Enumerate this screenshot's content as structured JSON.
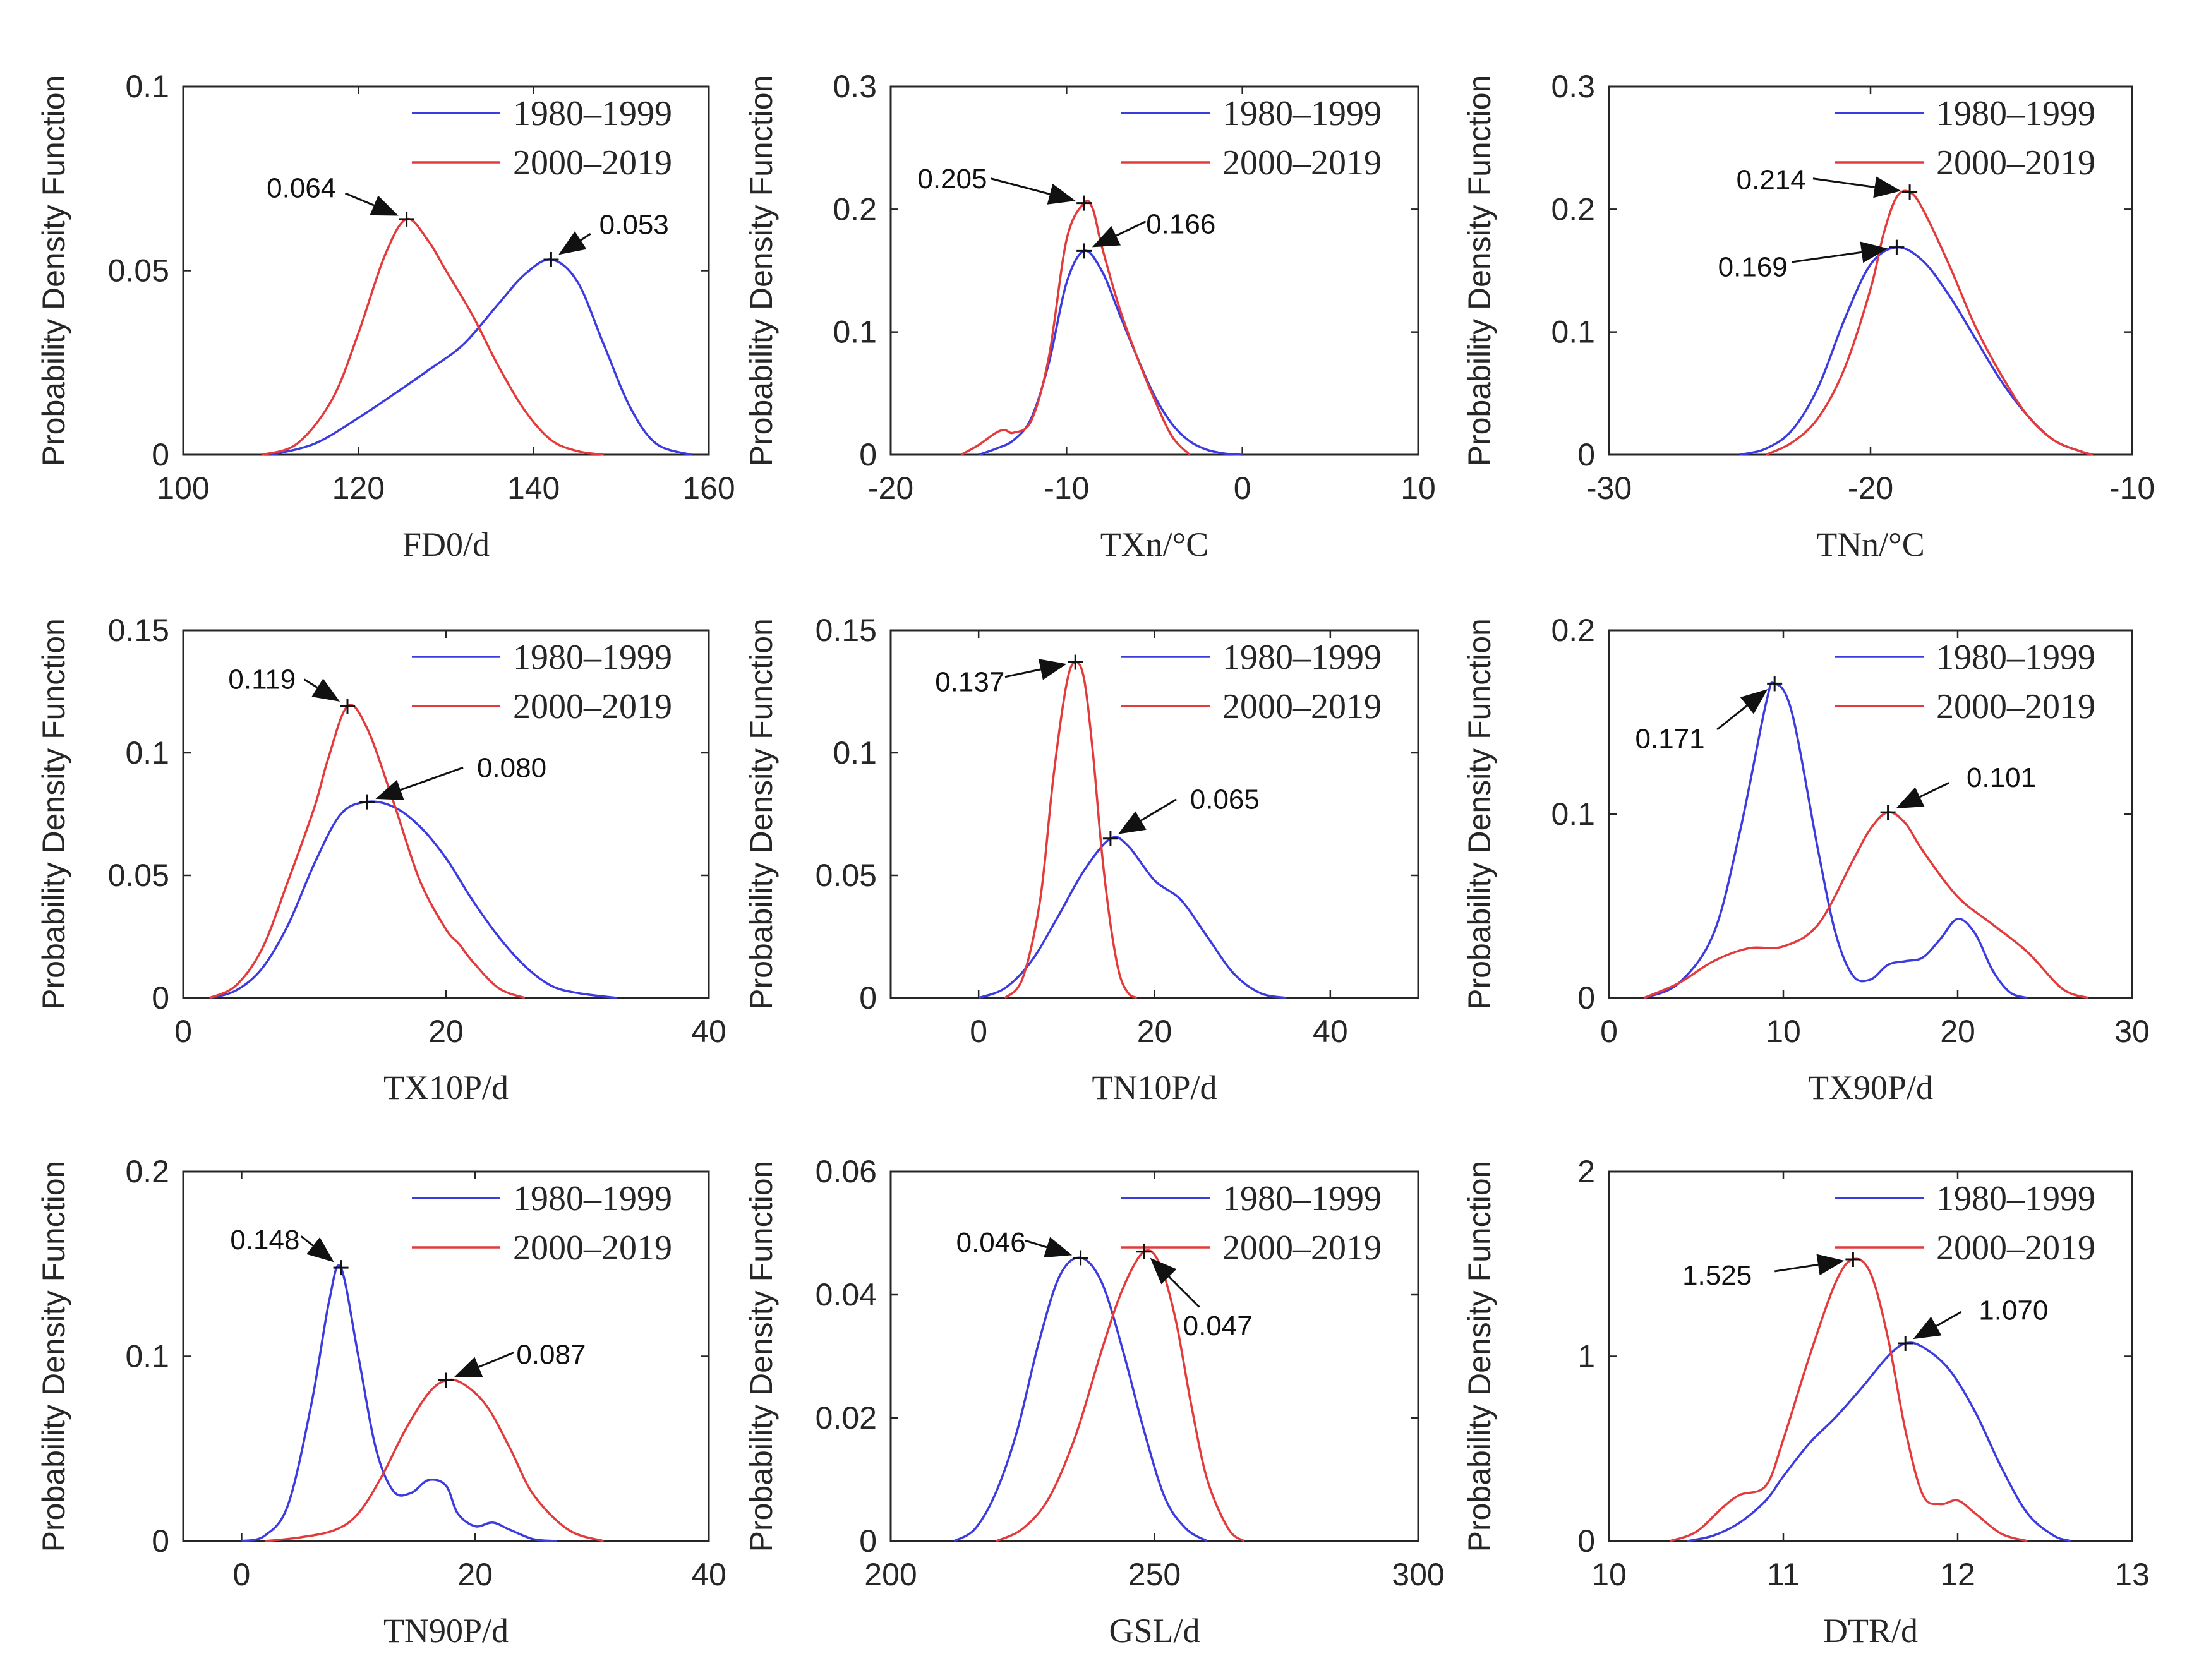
{
  "colors": {
    "series_1980": "#3b3bdf",
    "series_2000": "#e33b3b",
    "axis": "#262626"
  },
  "legend_labels": [
    "1980–1999",
    "2000–2019"
  ],
  "ylabel": "Probability Density Function",
  "chart_data": [
    {
      "type": "line",
      "xlabel": "FD0/d",
      "xlim": [
        100,
        160
      ],
      "ylim": [
        0,
        0.1
      ],
      "xticks": [
        "100",
        "120",
        "140",
        "160"
      ],
      "yticks": [
        "0",
        "0.05",
        "0.1"
      ],
      "series": [
        {
          "name": "1980–1999",
          "x": [
            110,
            115,
            120,
            125,
            128,
            132,
            136,
            139,
            142,
            145,
            148,
            151,
            154,
            158
          ],
          "y": [
            0,
            0.003,
            0.01,
            0.018,
            0.023,
            0.03,
            0.041,
            0.049,
            0.053,
            0.047,
            0.03,
            0.013,
            0.003,
            0
          ]
        },
        {
          "name": "2000–2019",
          "x": [
            109,
            113,
            117,
            120,
            123,
            125.5,
            128,
            130,
            133,
            136,
            139,
            142,
            145,
            148
          ],
          "y": [
            0,
            0.003,
            0.015,
            0.033,
            0.054,
            0.064,
            0.058,
            0.05,
            0.038,
            0.024,
            0.012,
            0.004,
            0.001,
            0
          ]
        }
      ],
      "peaks": [
        {
          "label": "0.064",
          "x": 125.5,
          "y": 0.064,
          "tx": 113.5,
          "ty": 0.0725,
          "anchor": "middle",
          "sx": 118.5,
          "sy": 0.071
        },
        {
          "label": "0.053",
          "x": 142,
          "y": 0.053,
          "tx": 147.5,
          "ty": 0.0625,
          "anchor": "start",
          "sx": 146.5,
          "sy": 0.06
        }
      ]
    },
    {
      "type": "line",
      "xlabel": "TXn/°C",
      "xlim": [
        -20,
        10
      ],
      "ylim": [
        0,
        0.3
      ],
      "xticks": [
        "-20",
        "-10",
        "0",
        "10"
      ],
      "yticks": [
        "0",
        "0.1",
        "0.2",
        "0.3"
      ],
      "series": [
        {
          "name": "1980–1999",
          "x": [
            -15,
            -14,
            -13,
            -12,
            -11,
            -10,
            -9,
            -8,
            -7,
            -6,
            -5,
            -4,
            -3,
            -2,
            -1,
            0
          ],
          "y": [
            0,
            0.005,
            0.012,
            0.03,
            0.075,
            0.14,
            0.166,
            0.15,
            0.115,
            0.08,
            0.048,
            0.025,
            0.011,
            0.004,
            0.001,
            0
          ]
        },
        {
          "name": "2000–2019",
          "x": [
            -16,
            -15,
            -14,
            -13.5,
            -13,
            -12,
            -11,
            -10,
            -9,
            -8.5,
            -8,
            -7,
            -6,
            -5,
            -4,
            -3
          ],
          "y": [
            0,
            0.008,
            0.018,
            0.02,
            0.018,
            0.028,
            0.08,
            0.175,
            0.205,
            0.2,
            0.17,
            0.12,
            0.08,
            0.045,
            0.015,
            0
          ]
        }
      ],
      "peaks": [
        {
          "label": "0.205",
          "x": -9,
          "y": 0.205,
          "tx": -16.5,
          "ty": 0.225,
          "anchor": "middle",
          "sx": -14.3,
          "sy": 0.225
        },
        {
          "label": "0.166",
          "x": -9,
          "y": 0.166,
          "tx": -3.5,
          "ty": 0.188,
          "anchor": "middle",
          "sx": -5.5,
          "sy": 0.19
        }
      ]
    },
    {
      "type": "line",
      "xlabel": "TNn/°C",
      "xlim": [
        -30,
        -10
      ],
      "ylim": [
        0,
        0.3
      ],
      "xticks": [
        "-30",
        "-20",
        "-10"
      ],
      "yticks": [
        "0",
        "0.1",
        "0.2",
        "0.3"
      ],
      "series": [
        {
          "name": "1980–1999",
          "x": [
            -25,
            -24,
            -23,
            -22,
            -21,
            -20,
            -19,
            -18,
            -17,
            -16,
            -15,
            -14,
            -13,
            -12,
            -11.5
          ],
          "y": [
            0,
            0.005,
            0.02,
            0.055,
            0.11,
            0.155,
            0.169,
            0.158,
            0.13,
            0.095,
            0.06,
            0.032,
            0.012,
            0.003,
            0
          ]
        },
        {
          "name": "2000–2019",
          "x": [
            -24,
            -23,
            -22,
            -21,
            -20,
            -19.5,
            -19,
            -18.5,
            -18,
            -17,
            -16,
            -15,
            -14,
            -13,
            -12,
            -11.5
          ],
          "y": [
            0,
            0.01,
            0.03,
            0.07,
            0.135,
            0.18,
            0.21,
            0.214,
            0.2,
            0.155,
            0.105,
            0.065,
            0.032,
            0.012,
            0.003,
            0
          ]
        }
      ],
      "peaks": [
        {
          "label": "0.214",
          "x": -18.5,
          "y": 0.214,
          "tx": -23.8,
          "ty": 0.224,
          "anchor": "middle",
          "sx": -22.2,
          "sy": 0.225
        },
        {
          "label": "0.169",
          "x": -19,
          "y": 0.169,
          "tx": -24.5,
          "ty": 0.153,
          "anchor": "middle",
          "sx": -23,
          "sy": 0.157
        }
      ]
    },
    {
      "type": "line",
      "xlabel": "TX10P/d",
      "xlim": [
        0,
        40
      ],
      "ylim": [
        0,
        0.15
      ],
      "xticks": [
        "0",
        "20",
        "40"
      ],
      "yticks": [
        "0",
        "0.05",
        "0.1",
        "0.15"
      ],
      "series": [
        {
          "name": "1980–1999",
          "x": [
            2,
            4,
            6,
            8,
            10,
            12,
            14,
            16,
            18,
            20,
            22,
            24,
            26,
            28,
            30,
            33
          ],
          "y": [
            0,
            0.003,
            0.012,
            0.03,
            0.055,
            0.075,
            0.08,
            0.078,
            0.07,
            0.057,
            0.04,
            0.025,
            0.013,
            0.005,
            0.002,
            0
          ]
        },
        {
          "name": "2000–2019",
          "x": [
            2,
            4,
            6,
            8,
            10,
            11,
            12.5,
            14,
            16,
            18,
            20,
            21,
            22,
            24,
            26
          ],
          "y": [
            0,
            0.005,
            0.02,
            0.048,
            0.078,
            0.097,
            0.119,
            0.11,
            0.08,
            0.048,
            0.028,
            0.022,
            0.015,
            0.004,
            0
          ]
        }
      ],
      "peaks": [
        {
          "label": "0.119",
          "x": 12.5,
          "y": 0.119,
          "tx": 6,
          "ty": 0.13,
          "anchor": "middle",
          "sx": 9.2,
          "sy": 0.13
        },
        {
          "label": "0.080",
          "x": 14,
          "y": 0.08,
          "tx": 25,
          "ty": 0.094,
          "anchor": "middle",
          "sx": 21.3,
          "sy": 0.094
        }
      ]
    },
    {
      "type": "line",
      "xlabel": "TN10P/d",
      "xlim": [
        -10,
        50
      ],
      "ylim": [
        0,
        0.15
      ],
      "xticks": [
        "0",
        "20",
        "40"
      ],
      "yticks": [
        "0",
        "0.05",
        "0.1",
        "0.15"
      ],
      "series": [
        {
          "name": "1980–1999",
          "x": [
            0,
            3,
            6,
            9,
            12,
            15,
            17,
            20,
            23,
            26,
            29,
            32,
            35
          ],
          "y": [
            0,
            0.004,
            0.015,
            0.033,
            0.052,
            0.065,
            0.062,
            0.048,
            0.04,
            0.025,
            0.01,
            0.002,
            0
          ]
        },
        {
          "name": "2000–2019",
          "x": [
            3,
            5,
            7,
            8.5,
            10,
            11,
            12,
            13,
            14,
            15,
            16,
            17,
            18
          ],
          "y": [
            0,
            0.008,
            0.04,
            0.09,
            0.128,
            0.137,
            0.13,
            0.1,
            0.06,
            0.03,
            0.01,
            0.002,
            0
          ]
        }
      ],
      "peaks": [
        {
          "label": "0.137",
          "x": 11,
          "y": 0.137,
          "tx": -1,
          "ty": 0.129,
          "anchor": "middle",
          "sx": 3,
          "sy": 0.131
        },
        {
          "label": "0.065",
          "x": 15,
          "y": 0.065,
          "tx": 28,
          "ty": 0.081,
          "anchor": "middle",
          "sx": 22.5,
          "sy": 0.081
        }
      ]
    },
    {
      "type": "line",
      "xlabel": "TX90P/d",
      "xlim": [
        0,
        30
      ],
      "ylim": [
        0,
        0.2
      ],
      "xticks": [
        "0",
        "10",
        "20",
        "30"
      ],
      "yticks": [
        "0",
        "0.1",
        "0.2"
      ],
      "series": [
        {
          "name": "1980–1999",
          "x": [
            2,
            4,
            6,
            7.5,
            9,
            9.5,
            10.5,
            12,
            13,
            14,
            15,
            16,
            17,
            18,
            19,
            20,
            21,
            22,
            23,
            24
          ],
          "y": [
            0,
            0.008,
            0.035,
            0.09,
            0.16,
            0.171,
            0.155,
            0.08,
            0.035,
            0.012,
            0.01,
            0.018,
            0.02,
            0.022,
            0.032,
            0.043,
            0.035,
            0.015,
            0.003,
            0
          ]
        },
        {
          "name": "2000–2019",
          "x": [
            2,
            4,
            6,
            8,
            10,
            12,
            14,
            15,
            16,
            17,
            18,
            20,
            22,
            24,
            26,
            27.5
          ],
          "y": [
            0,
            0.008,
            0.02,
            0.027,
            0.028,
            0.04,
            0.075,
            0.092,
            0.101,
            0.095,
            0.08,
            0.055,
            0.04,
            0.025,
            0.005,
            0
          ]
        }
      ],
      "peaks": [
        {
          "label": "0.171",
          "x": 9.5,
          "y": 0.171,
          "tx": 3.5,
          "ty": 0.141,
          "anchor": "middle",
          "sx": 6.2,
          "sy": 0.146
        },
        {
          "label": "0.101",
          "x": 16,
          "y": 0.101,
          "tx": 22.5,
          "ty": 0.12,
          "anchor": "middle",
          "sx": 19.5,
          "sy": 0.117
        }
      ]
    },
    {
      "type": "line",
      "xlabel": "TN90P/d",
      "xlim": [
        -5,
        40
      ],
      "ylim": [
        0,
        0.2
      ],
      "xticks": [
        "0",
        "20",
        "40"
      ],
      "yticks": [
        "0",
        "0.1",
        "0.2"
      ],
      "series": [
        {
          "name": "1980–1999",
          "x": [
            0,
            2,
            4,
            6,
            7.5,
            8.5,
            10,
            11.5,
            13,
            14.5,
            16,
            17.5,
            18.5,
            20,
            21.5,
            23,
            25,
            27
          ],
          "y": [
            0,
            0.003,
            0.02,
            0.075,
            0.13,
            0.148,
            0.1,
            0.05,
            0.027,
            0.026,
            0.033,
            0.03,
            0.015,
            0.008,
            0.01,
            0.006,
            0.001,
            0
          ]
        },
        {
          "name": "2000–2019",
          "x": [
            2,
            5,
            8,
            10,
            12,
            14,
            16,
            17.5,
            19,
            21,
            23,
            25,
            28,
            31
          ],
          "y": [
            0,
            0.002,
            0.006,
            0.015,
            0.035,
            0.06,
            0.08,
            0.087,
            0.085,
            0.073,
            0.05,
            0.025,
            0.006,
            0
          ]
        }
      ],
      "peaks": [
        {
          "label": "0.148",
          "x": 8.5,
          "y": 0.148,
          "tx": 2,
          "ty": 0.163,
          "anchor": "middle",
          "sx": 5.1,
          "sy": 0.165
        },
        {
          "label": "0.087",
          "x": 17.5,
          "y": 0.087,
          "tx": 26.5,
          "ty": 0.101,
          "anchor": "middle",
          "sx": 23.3,
          "sy": 0.102
        }
      ]
    },
    {
      "type": "line",
      "xlabel": "GSL/d",
      "xlim": [
        200,
        300
      ],
      "ylim": [
        0,
        0.06
      ],
      "xticks": [
        "200",
        "250",
        "300"
      ],
      "yticks": [
        "0",
        "0.02",
        "0.04",
        "0.06"
      ],
      "series": [
        {
          "name": "1980–1999",
          "x": [
            212,
            216,
            220,
            224,
            228,
            232,
            236,
            240,
            244,
            248,
            252,
            256,
            260
          ],
          "y": [
            0,
            0.002,
            0.008,
            0.018,
            0.032,
            0.043,
            0.046,
            0.042,
            0.031,
            0.018,
            0.007,
            0.002,
            0
          ]
        },
        {
          "name": "2000–2019",
          "x": [
            220,
            225,
            230,
            235,
            240,
            244,
            248,
            251,
            254,
            257,
            260,
            264,
            267
          ],
          "y": [
            0,
            0.002,
            0.007,
            0.017,
            0.031,
            0.041,
            0.047,
            0.045,
            0.036,
            0.022,
            0.01,
            0.002,
            0
          ]
        }
      ],
      "peaks": [
        {
          "label": "0.046",
          "x": 236,
          "y": 0.046,
          "tx": 219,
          "ty": 0.0485,
          "anchor": "middle",
          "sx": 225.5,
          "sy": 0.0488
        },
        {
          "label": "0.047",
          "x": 248,
          "y": 0.047,
          "tx": 262,
          "ty": 0.035,
          "anchor": "middle",
          "sx": 258.5,
          "sy": 0.038
        }
      ]
    },
    {
      "type": "line",
      "xlabel": "DTR/d",
      "xlim": [
        10,
        13
      ],
      "ylim": [
        0,
        2
      ],
      "xticks": [
        "10",
        "11",
        "12",
        "13"
      ],
      "yticks": [
        "0",
        "1",
        "2"
      ],
      "series": [
        {
          "name": "1980–1999",
          "x": [
            10.45,
            10.6,
            10.75,
            10.9,
            11,
            11.15,
            11.3,
            11.45,
            11.6,
            11.7,
            11.8,
            11.95,
            12.1,
            12.25,
            12.4,
            12.55,
            12.65
          ],
          "y": [
            0,
            0.03,
            0.1,
            0.22,
            0.35,
            0.53,
            0.67,
            0.83,
            1.0,
            1.07,
            1.05,
            0.93,
            0.7,
            0.4,
            0.15,
            0.03,
            0
          ]
        },
        {
          "name": "2000–2019",
          "x": [
            10.35,
            10.5,
            10.65,
            10.75,
            10.9,
            11,
            11.15,
            11.3,
            11.4,
            11.5,
            11.6,
            11.7,
            11.8,
            11.9,
            12,
            12.1,
            12.25,
            12.4
          ],
          "y": [
            0,
            0.05,
            0.18,
            0.25,
            0.3,
            0.55,
            1.0,
            1.4,
            1.525,
            1.45,
            1.1,
            0.6,
            0.25,
            0.2,
            0.22,
            0.15,
            0.04,
            0
          ]
        }
      ],
      "peaks": [
        {
          "label": "1.525",
          "x": 11.4,
          "y": 1.525,
          "tx": 10.62,
          "ty": 1.44,
          "anchor": "middle",
          "sx": 10.95,
          "sy": 1.46
        },
        {
          "label": "1.070",
          "x": 11.7,
          "y": 1.07,
          "tx": 12.32,
          "ty": 1.25,
          "anchor": "middle",
          "sx": 12.02,
          "sy": 1.24
        }
      ]
    }
  ]
}
